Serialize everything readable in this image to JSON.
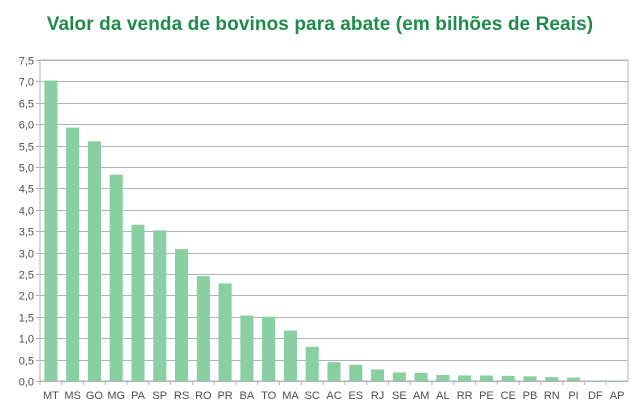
{
  "chart_data": {
    "type": "bar",
    "title": "Valor da venda de bovinos para abate (em bilhões de Reais)",
    "xlabel": "",
    "ylabel": "",
    "categories": [
      "MT",
      "MS",
      "GO",
      "MG",
      "PA",
      "SP",
      "RS",
      "RO",
      "PR",
      "BA",
      "TO",
      "MA",
      "SC",
      "AC",
      "ES",
      "RJ",
      "SE",
      "AM",
      "AL",
      "RR",
      "PE",
      "CE",
      "PB",
      "RN",
      "PI",
      "DF",
      "AP"
    ],
    "values": [
      7.02,
      5.92,
      5.6,
      4.82,
      3.65,
      3.52,
      3.08,
      2.45,
      2.28,
      1.53,
      1.5,
      1.18,
      0.8,
      0.44,
      0.38,
      0.27,
      0.2,
      0.19,
      0.14,
      0.13,
      0.13,
      0.12,
      0.11,
      0.09,
      0.08,
      0.01,
      0.01
    ],
    "ylim": [
      0,
      7.5
    ],
    "yticks": [
      "0,0",
      "0,5",
      "1,0",
      "1,5",
      "2,0",
      "2,5",
      "3,0",
      "3,5",
      "4,0",
      "4,5",
      "5,0",
      "5,5",
      "6,0",
      "6,5",
      "7,0",
      "7,5"
    ],
    "grid": true,
    "bar_color": "#88cfa2",
    "title_color": "#1f8a4c"
  }
}
